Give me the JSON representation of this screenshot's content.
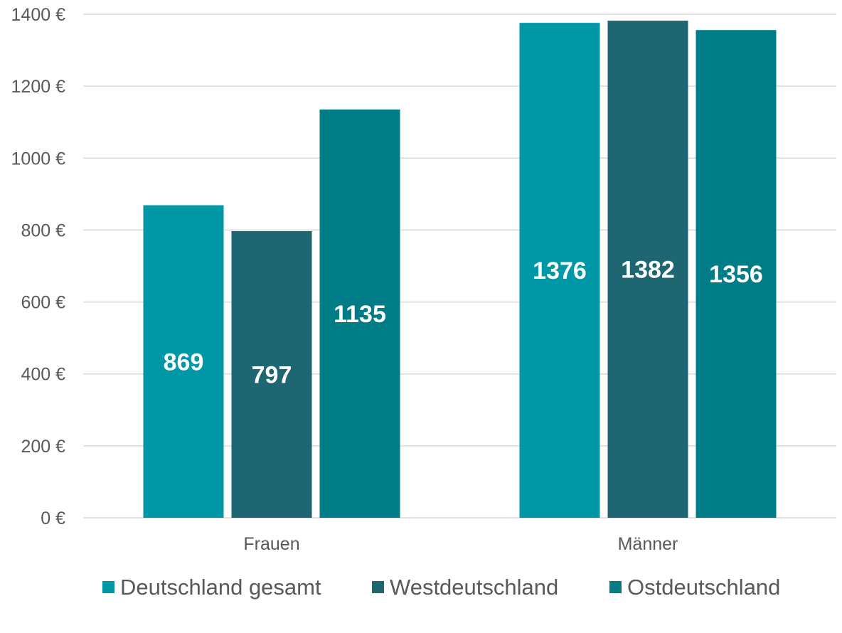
{
  "chart_data": {
    "type": "bar",
    "categories": [
      "Frauen",
      "Männer"
    ],
    "series": [
      {
        "name": "Deutschland gesamt",
        "values": [
          869,
          1376
        ],
        "color": "#0097a7"
      },
      {
        "name": "Westdeutschland",
        "values": [
          797,
          1382
        ],
        "color": "#1e6672"
      },
      {
        "name": "Ostdeutschland",
        "values": [
          1135,
          1356
        ],
        "color": "#007c86"
      }
    ],
    "y_ticks": [
      0,
      200,
      400,
      600,
      800,
      1000,
      1200,
      1400
    ],
    "y_unit_suffix": " €",
    "ylim": [
      0,
      1400
    ],
    "grid": true,
    "legend_position": "bottom",
    "title": "",
    "xlabel": "",
    "ylabel": ""
  }
}
